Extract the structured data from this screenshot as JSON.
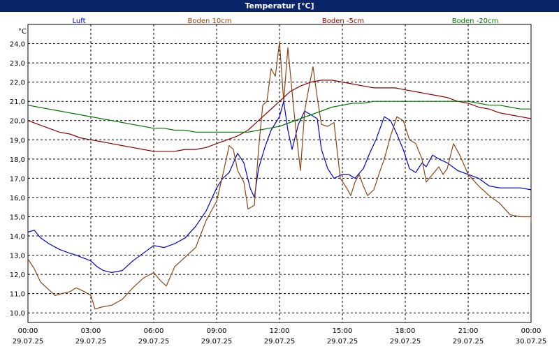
{
  "window": {
    "title": "Temperatur [°C]"
  },
  "chart_data": {
    "type": "line",
    "title": "Temperatur [°C]",
    "ylabel": "°C",
    "xlabel": "",
    "ylim": [
      9.5,
      25.0
    ],
    "xlim": [
      0,
      24
    ],
    "grid": true,
    "legend_position": "top",
    "y_ticks": [
      "10,0",
      "11,0",
      "12,0",
      "13,0",
      "14,0",
      "15,0",
      "16,0",
      "17,0",
      "18,0",
      "19,0",
      "20,0",
      "21,0",
      "22,0",
      "23,0",
      "24,0"
    ],
    "x_ticks": [
      {
        "time": "00:00",
        "date": "29.07.25"
      },
      {
        "time": "03:00",
        "date": "29.07.25"
      },
      {
        "time": "06:00",
        "date": "29.07.25"
      },
      {
        "time": "09:00",
        "date": "29.07.25"
      },
      {
        "time": "12:00",
        "date": "29.07.25"
      },
      {
        "time": "15:00",
        "date": "29.07.25"
      },
      {
        "time": "18:00",
        "date": "29.07.25"
      },
      {
        "time": "21:00",
        "date": "29.07.25"
      },
      {
        "time": "00:00",
        "date": "30.07.25"
      }
    ],
    "series": [
      {
        "name": "Luft",
        "color": "#0000cc",
        "points": [
          [
            0,
            14.2
          ],
          [
            0.3,
            14.3
          ],
          [
            0.6,
            13.9
          ],
          [
            1.0,
            13.6
          ],
          [
            1.5,
            13.3
          ],
          [
            2.0,
            13.1
          ],
          [
            2.3,
            13.0
          ],
          [
            3.0,
            12.7
          ],
          [
            3.3,
            12.4
          ],
          [
            3.6,
            12.2
          ],
          [
            4.0,
            12.1
          ],
          [
            4.5,
            12.2
          ],
          [
            5.0,
            12.7
          ],
          [
            5.5,
            13.1
          ],
          [
            6.0,
            13.5
          ],
          [
            6.5,
            13.4
          ],
          [
            7.0,
            13.6
          ],
          [
            7.5,
            13.9
          ],
          [
            8.0,
            14.5
          ],
          [
            8.5,
            15.3
          ],
          [
            9.0,
            16.5
          ],
          [
            9.3,
            17.0
          ],
          [
            9.6,
            17.3
          ],
          [
            10.0,
            18.3
          ],
          [
            10.3,
            17.8
          ],
          [
            10.6,
            16.5
          ],
          [
            10.8,
            16.0
          ],
          [
            11.0,
            17.5
          ],
          [
            11.3,
            18.6
          ],
          [
            11.6,
            19.5
          ],
          [
            12.0,
            20.2
          ],
          [
            12.2,
            21.0
          ],
          [
            12.4,
            19.5
          ],
          [
            12.6,
            18.5
          ],
          [
            12.9,
            19.8
          ],
          [
            13.2,
            20.5
          ],
          [
            13.5,
            20.3
          ],
          [
            13.8,
            20.1
          ],
          [
            14.0,
            18.5
          ],
          [
            14.3,
            17.5
          ],
          [
            14.6,
            17.0
          ],
          [
            15.0,
            17.2
          ],
          [
            15.3,
            17.2
          ],
          [
            15.6,
            17.0
          ],
          [
            16.0,
            17.5
          ],
          [
            16.3,
            18.3
          ],
          [
            16.6,
            19.0
          ],
          [
            17.0,
            20.2
          ],
          [
            17.3,
            20.0
          ],
          [
            17.6,
            19.3
          ],
          [
            17.9,
            18.5
          ],
          [
            18.2,
            17.5
          ],
          [
            18.5,
            17.3
          ],
          [
            18.8,
            17.8
          ],
          [
            19.0,
            17.6
          ],
          [
            19.3,
            18.2
          ],
          [
            19.6,
            18.0
          ],
          [
            20.0,
            17.8
          ],
          [
            20.5,
            17.4
          ],
          [
            21.0,
            17.2
          ],
          [
            21.5,
            17.0
          ],
          [
            22.0,
            16.6
          ],
          [
            22.5,
            16.5
          ],
          [
            23.0,
            16.5
          ],
          [
            23.5,
            16.5
          ],
          [
            24.0,
            16.4
          ]
        ]
      },
      {
        "name": "Boden 10cm",
        "color": "#8b4513",
        "points": [
          [
            0,
            12.8
          ],
          [
            0.3,
            12.3
          ],
          [
            0.6,
            11.6
          ],
          [
            1.0,
            11.2
          ],
          [
            1.3,
            10.9
          ],
          [
            1.6,
            11.0
          ],
          [
            2.0,
            11.1
          ],
          [
            2.3,
            11.3
          ],
          [
            2.7,
            11.1
          ],
          [
            3.0,
            10.9
          ],
          [
            3.2,
            10.2
          ],
          [
            3.5,
            10.3
          ],
          [
            4.0,
            10.4
          ],
          [
            4.5,
            10.7
          ],
          [
            5.0,
            11.3
          ],
          [
            5.5,
            11.8
          ],
          [
            6.0,
            12.1
          ],
          [
            6.3,
            11.7
          ],
          [
            6.6,
            11.4
          ],
          [
            7.0,
            12.4
          ],
          [
            7.5,
            12.9
          ],
          [
            8.0,
            13.4
          ],
          [
            8.5,
            14.8
          ],
          [
            9.0,
            15.8
          ],
          [
            9.3,
            17.2
          ],
          [
            9.6,
            18.7
          ],
          [
            9.8,
            18.5
          ],
          [
            10.0,
            17.4
          ],
          [
            10.3,
            16.8
          ],
          [
            10.5,
            15.4
          ],
          [
            10.8,
            15.6
          ],
          [
            11.0,
            18.5
          ],
          [
            11.2,
            20.8
          ],
          [
            11.4,
            21.0
          ],
          [
            11.6,
            22.7
          ],
          [
            11.8,
            22.3
          ],
          [
            12.0,
            24.1
          ],
          [
            12.2,
            21.0
          ],
          [
            12.4,
            23.8
          ],
          [
            12.6,
            21.5
          ],
          [
            12.8,
            19.3
          ],
          [
            13.0,
            17.4
          ],
          [
            13.2,
            20.5
          ],
          [
            13.4,
            21.7
          ],
          [
            13.6,
            22.8
          ],
          [
            13.8,
            21.2
          ],
          [
            14.0,
            19.8
          ],
          [
            14.3,
            19.7
          ],
          [
            14.6,
            19.9
          ],
          [
            14.9,
            17.0
          ],
          [
            15.2,
            16.5
          ],
          [
            15.4,
            16.1
          ],
          [
            15.6,
            16.8
          ],
          [
            15.8,
            17.2
          ],
          [
            16.0,
            16.6
          ],
          [
            16.2,
            16.1
          ],
          [
            16.5,
            16.4
          ],
          [
            16.8,
            17.4
          ],
          [
            17.0,
            18.0
          ],
          [
            17.3,
            19.2
          ],
          [
            17.6,
            20.2
          ],
          [
            17.9,
            20.0
          ],
          [
            18.2,
            19.0
          ],
          [
            18.5,
            18.8
          ],
          [
            18.8,
            18.0
          ],
          [
            19.0,
            16.8
          ],
          [
            19.3,
            17.2
          ],
          [
            19.6,
            17.6
          ],
          [
            19.8,
            17.2
          ],
          [
            20.0,
            17.5
          ],
          [
            20.3,
            18.8
          ],
          [
            20.6,
            18.2
          ],
          [
            21.0,
            17.2
          ],
          [
            21.5,
            16.6
          ],
          [
            22.0,
            16.1
          ],
          [
            22.5,
            15.7
          ],
          [
            23.0,
            15.1
          ],
          [
            23.5,
            15.0
          ],
          [
            24.0,
            15.0
          ],
          [
            24.5,
            14.9
          ],
          [
            24.9,
            14.7
          ]
        ]
      },
      {
        "name": "Boden -5cm",
        "color": "#8b0000",
        "points": [
          [
            0,
            20.0
          ],
          [
            0.5,
            19.8
          ],
          [
            1.0,
            19.6
          ],
          [
            1.5,
            19.4
          ],
          [
            2.0,
            19.3
          ],
          [
            2.5,
            19.1
          ],
          [
            3.0,
            19.0
          ],
          [
            3.5,
            18.9
          ],
          [
            4.0,
            18.8
          ],
          [
            4.5,
            18.7
          ],
          [
            5.0,
            18.6
          ],
          [
            5.5,
            18.5
          ],
          [
            6.0,
            18.4
          ],
          [
            6.5,
            18.4
          ],
          [
            7.0,
            18.4
          ],
          [
            7.5,
            18.5
          ],
          [
            8.0,
            18.5
          ],
          [
            8.5,
            18.6
          ],
          [
            9.0,
            18.8
          ],
          [
            9.5,
            19.0
          ],
          [
            10.0,
            19.2
          ],
          [
            10.5,
            19.5
          ],
          [
            11.0,
            20.0
          ],
          [
            11.5,
            20.5
          ],
          [
            12.0,
            21.0
          ],
          [
            12.5,
            21.5
          ],
          [
            13.0,
            21.8
          ],
          [
            13.5,
            22.0
          ],
          [
            14.0,
            22.1
          ],
          [
            14.5,
            22.1
          ],
          [
            15.0,
            22.0
          ],
          [
            15.5,
            21.9
          ],
          [
            16.0,
            21.8
          ],
          [
            16.5,
            21.7
          ],
          [
            17.0,
            21.7
          ],
          [
            17.5,
            21.7
          ],
          [
            18.0,
            21.6
          ],
          [
            18.5,
            21.5
          ],
          [
            19.0,
            21.4
          ],
          [
            19.5,
            21.3
          ],
          [
            20.0,
            21.2
          ],
          [
            20.5,
            21.0
          ],
          [
            21.0,
            20.9
          ],
          [
            21.5,
            20.7
          ],
          [
            22.0,
            20.6
          ],
          [
            22.5,
            20.4
          ],
          [
            23.0,
            20.3
          ],
          [
            23.5,
            20.2
          ],
          [
            24.0,
            20.1
          ]
        ]
      },
      {
        "name": "Boden -20cm",
        "color": "#007700",
        "points": [
          [
            0,
            20.8
          ],
          [
            0.5,
            20.7
          ],
          [
            1.0,
            20.6
          ],
          [
            1.5,
            20.5
          ],
          [
            2.0,
            20.4
          ],
          [
            2.5,
            20.3
          ],
          [
            3.0,
            20.2
          ],
          [
            3.5,
            20.1
          ],
          [
            4.0,
            20.0
          ],
          [
            4.5,
            19.9
          ],
          [
            5.0,
            19.8
          ],
          [
            5.5,
            19.7
          ],
          [
            6.0,
            19.6
          ],
          [
            6.5,
            19.6
          ],
          [
            7.0,
            19.5
          ],
          [
            7.5,
            19.5
          ],
          [
            8.0,
            19.4
          ],
          [
            8.5,
            19.4
          ],
          [
            9.0,
            19.4
          ],
          [
            9.5,
            19.4
          ],
          [
            10.0,
            19.4
          ],
          [
            10.5,
            19.4
          ],
          [
            11.0,
            19.5
          ],
          [
            11.5,
            19.6
          ],
          [
            12.0,
            19.7
          ],
          [
            12.5,
            19.9
          ],
          [
            13.0,
            20.1
          ],
          [
            13.5,
            20.3
          ],
          [
            14.0,
            20.5
          ],
          [
            14.5,
            20.7
          ],
          [
            15.0,
            20.8
          ],
          [
            15.5,
            20.9
          ],
          [
            16.0,
            20.9
          ],
          [
            16.5,
            21.0
          ],
          [
            17.0,
            21.0
          ],
          [
            17.5,
            21.0
          ],
          [
            18.0,
            21.0
          ],
          [
            18.5,
            21.0
          ],
          [
            19.0,
            21.0
          ],
          [
            19.5,
            21.0
          ],
          [
            20.0,
            21.0
          ],
          [
            20.5,
            21.0
          ],
          [
            21.0,
            21.0
          ],
          [
            21.5,
            20.9
          ],
          [
            22.0,
            20.8
          ],
          [
            22.5,
            20.8
          ],
          [
            23.0,
            20.7
          ],
          [
            23.5,
            20.6
          ],
          [
            24.0,
            20.6
          ]
        ]
      }
    ]
  }
}
